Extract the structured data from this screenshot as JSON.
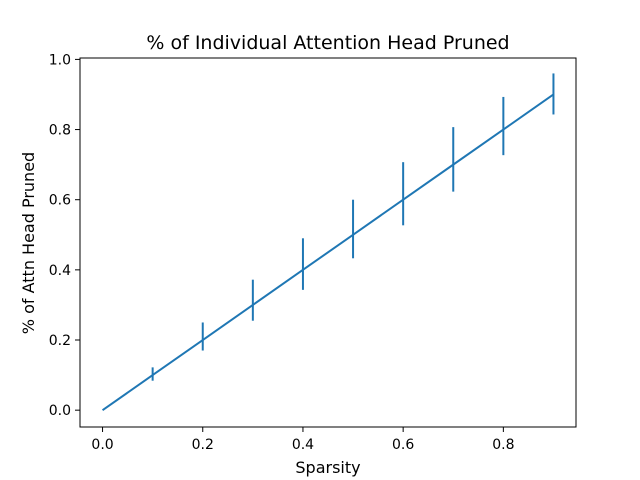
{
  "chart_data": {
    "type": "line",
    "title": "% of Individual Attention Head Pruned",
    "xlabel": "Sparsity",
    "ylabel": "% of Attn Head Pruned",
    "xlim": [
      -0.045,
      0.945
    ],
    "ylim": [
      -0.048,
      1.004
    ],
    "xticks": [
      0.0,
      0.2,
      0.4,
      0.6,
      0.8
    ],
    "xtick_labels": [
      "0.0",
      "0.2",
      "0.4",
      "0.6",
      "0.8"
    ],
    "yticks": [
      0.0,
      0.2,
      0.4,
      0.6,
      0.8,
      1.0
    ],
    "ytick_labels": [
      "0.0",
      "0.2",
      "0.4",
      "0.6",
      "0.8",
      "1.0"
    ],
    "grid": false,
    "series": [
      {
        "color": "#1f77b4",
        "x": [
          0.0,
          0.1,
          0.2,
          0.3,
          0.4,
          0.5,
          0.6,
          0.7,
          0.8,
          0.9
        ],
        "y": [
          0.0,
          0.1,
          0.2,
          0.3,
          0.4,
          0.5,
          0.6,
          0.7,
          0.8,
          0.9
        ],
        "err_low": [
          0.0,
          0.084,
          0.17,
          0.255,
          0.343,
          0.433,
          0.527,
          0.623,
          0.727,
          0.843
        ],
        "err_high": [
          0.0,
          0.122,
          0.25,
          0.372,
          0.49,
          0.6,
          0.707,
          0.807,
          0.893,
          0.96
        ]
      }
    ]
  }
}
